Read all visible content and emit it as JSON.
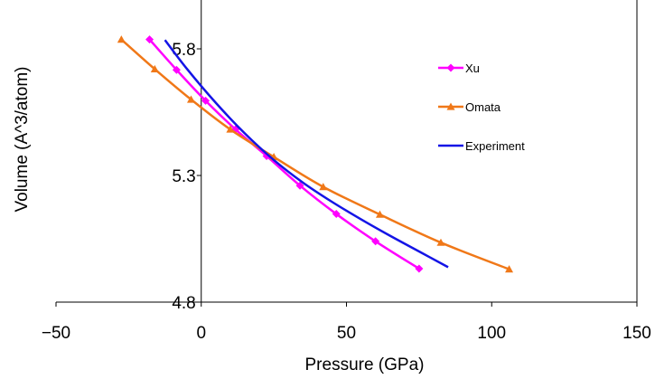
{
  "chart_data": {
    "type": "line",
    "xlabel": "Pressure (GPa)",
    "ylabel": "Volume (A^3/atom)",
    "xlim": [
      -50,
      150
    ],
    "ylim": [
      4.8,
      5.8
    ],
    "x_ticks": [
      -50,
      0,
      50,
      100,
      150
    ],
    "x_tick_labels": [
      "−50",
      "0",
      "50",
      "100",
      "150"
    ],
    "y_ticks": [
      4.8,
      5.3,
      5.8
    ],
    "y_tick_labels": [
      "4.8",
      "5.3",
      "5.8"
    ],
    "grid": false,
    "legend_position": "top-right",
    "series": [
      {
        "name": "Xu",
        "color": "#ff00ff",
        "marker": "diamond",
        "x": [
          -17.8,
          -8.5,
          1.5,
          11.8,
          22.5,
          34.0,
          46.5,
          60.0,
          75.0
        ],
        "y": [
          5.837,
          5.717,
          5.595,
          5.482,
          5.377,
          5.26,
          5.148,
          5.04,
          4.932
        ]
      },
      {
        "name": "Omata",
        "color": "#f07818",
        "marker": "triangle",
        "x": [
          -27.5,
          -16.0,
          -3.5,
          10.0,
          25.0,
          42.0,
          61.5,
          82.5,
          106.0
        ],
        "y": [
          5.837,
          5.72,
          5.6,
          5.482,
          5.373,
          5.255,
          5.146,
          5.035,
          4.93
        ]
      },
      {
        "name": "Experiment",
        "color": "#1414e6",
        "marker": "none",
        "x": [
          -12.5,
          -5,
          5,
          15,
          25,
          35,
          45,
          55,
          65,
          75,
          85
        ],
        "y": [
          5.835,
          5.722,
          5.587,
          5.466,
          5.361,
          5.272,
          5.196,
          5.127,
          5.062,
          5.0,
          4.938
        ]
      }
    ]
  }
}
